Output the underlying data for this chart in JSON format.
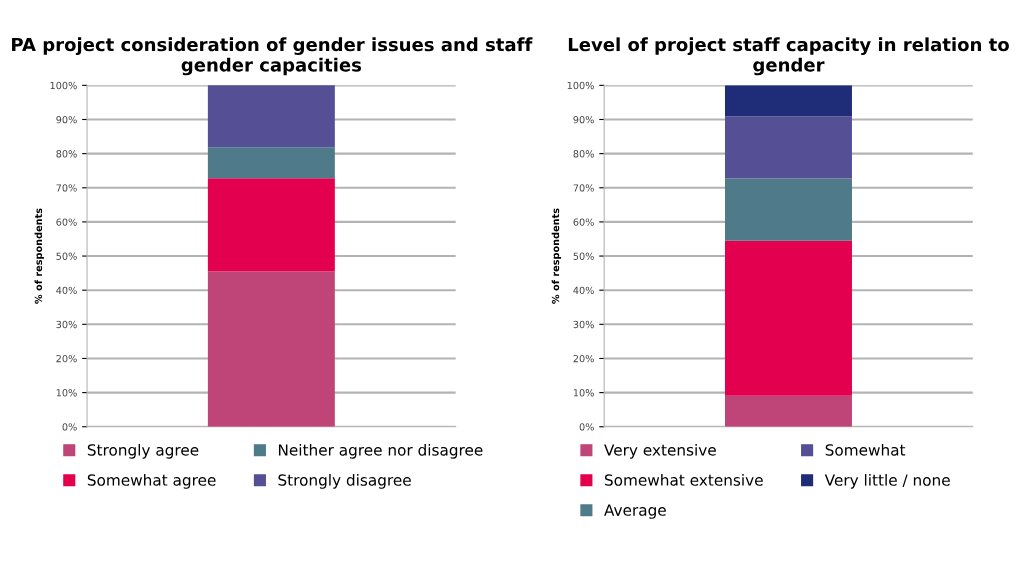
{
  "chart_data": [
    {
      "type": "bar",
      "stacked": true,
      "title": "PA project consideration of gender issues and staff gender capacities",
      "ylabel": "% of respondents",
      "categories": [
        null
      ],
      "series": [
        {
          "name": "Strongly agree",
          "color": "#bf4578",
          "values": [
            45.5
          ]
        },
        {
          "name": "Somewhat agree",
          "color": "#e3004f",
          "values": [
            27.3
          ]
        },
        {
          "name": "Neither agree nor disagree",
          "color": "#4f7a89",
          "values": [
            9.1
          ]
        },
        {
          "name": "Strongly disagree",
          "color": "#554f96",
          "values": [
            18.2
          ]
        }
      ],
      "ylim": [
        0,
        100
      ],
      "yticks": [
        {
          "value": 0,
          "label": "0%"
        },
        {
          "value": 10,
          "label": "10%"
        },
        {
          "value": 20,
          "label": "20%"
        },
        {
          "value": 30,
          "label": "30%"
        },
        {
          "value": 40,
          "label": "40%"
        },
        {
          "value": 50,
          "label": "50%"
        },
        {
          "value": 60,
          "label": "60%"
        },
        {
          "value": 70,
          "label": "70%"
        },
        {
          "value": 80,
          "label": "80%"
        },
        {
          "value": 90,
          "label": "90%"
        },
        {
          "value": 100,
          "label": "100%"
        }
      ],
      "grid": "y",
      "legend": "bottom"
    },
    {
      "type": "bar",
      "stacked": true,
      "title": "Level of project staff capacity in relation to gender",
      "ylabel": "% of respondents",
      "categories": [
        null
      ],
      "series": [
        {
          "name": "Very extensive",
          "color": "#bf4578",
          "values": [
            9.1
          ]
        },
        {
          "name": "Somewhat extensive",
          "color": "#e3004f",
          "values": [
            45.4
          ]
        },
        {
          "name": "Average",
          "color": "#4f7a89",
          "values": [
            18.2
          ]
        },
        {
          "name": "Somewhat",
          "color": "#554f96",
          "values": [
            18.2
          ]
        },
        {
          "name": "Very little / none",
          "color": "#1f2d78",
          "values": [
            9.1
          ]
        }
      ],
      "ylim": [
        0,
        100
      ],
      "yticks": [
        {
          "value": 0,
          "label": "0%"
        },
        {
          "value": 10,
          "label": "10%"
        },
        {
          "value": 20,
          "label": "20%"
        },
        {
          "value": 30,
          "label": "30%"
        },
        {
          "value": 40,
          "label": "40%"
        },
        {
          "value": 50,
          "label": "50%"
        },
        {
          "value": 60,
          "label": "60%"
        },
        {
          "value": 70,
          "label": "70%"
        },
        {
          "value": 80,
          "label": "80%"
        },
        {
          "value": 90,
          "label": "90%"
        },
        {
          "value": 100,
          "label": "100%"
        }
      ],
      "grid": "y",
      "legend": "bottom"
    }
  ]
}
